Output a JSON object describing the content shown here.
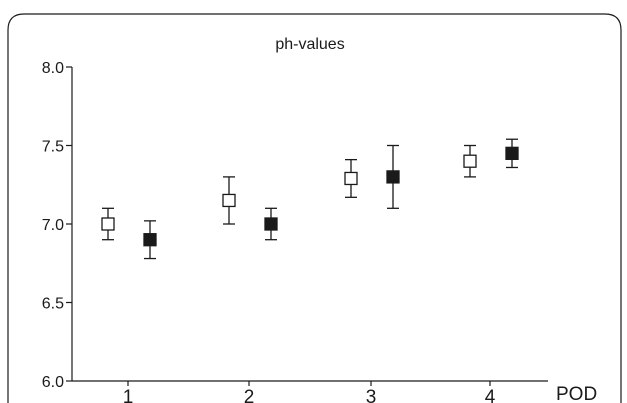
{
  "colors": {
    "axis": "#1a1a1a",
    "frame": "#1a1a1a",
    "marker_open": "#ffffff",
    "marker_filled": "#1a1a1a"
  },
  "chart_data": {
    "type": "scatter",
    "title": "ph-values",
    "xlabel": "POD",
    "ylabel": "",
    "categories": [
      "1",
      "2",
      "3",
      "4"
    ],
    "ylim": [
      6.0,
      8.0
    ],
    "yticks": [
      "6.0",
      "6.5",
      "7.0",
      "7.5",
      "8.0"
    ],
    "grid": false,
    "legend": "none",
    "series": [
      {
        "marker": "open-square",
        "values": [
          7.0,
          7.15,
          7.29,
          7.4
        ],
        "error_low": [
          6.9,
          7.0,
          7.17,
          7.3
        ],
        "error_high": [
          7.1,
          7.3,
          7.41,
          7.5
        ]
      },
      {
        "marker": "filled-square",
        "values": [
          6.9,
          7.0,
          7.3,
          7.45
        ],
        "error_low": [
          6.78,
          6.9,
          7.1,
          7.36
        ],
        "error_high": [
          7.02,
          7.1,
          7.5,
          7.54
        ]
      }
    ]
  }
}
